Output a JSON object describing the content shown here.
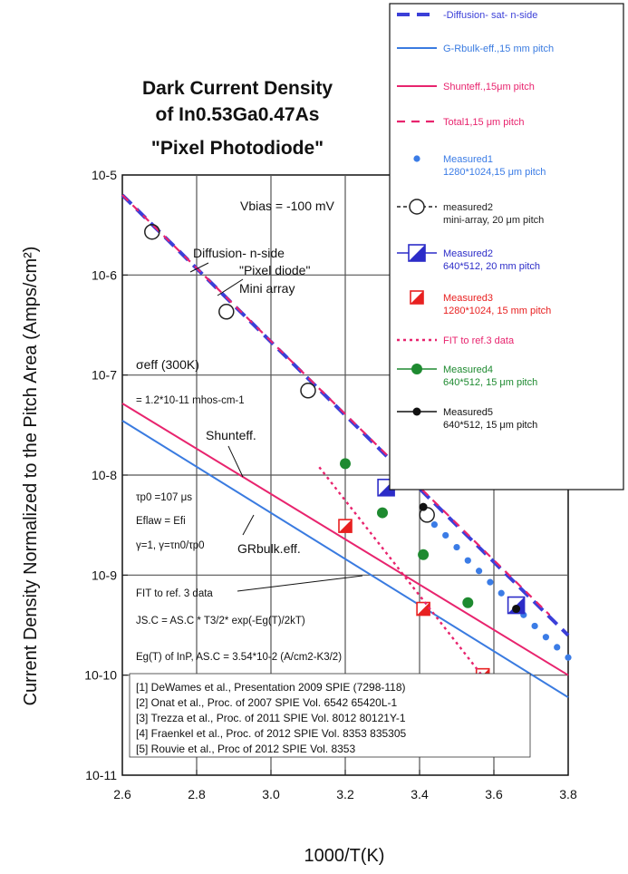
{
  "chart_data": {
    "type": "line",
    "title_lines": [
      "Dark Current Density",
      "of In0.53Ga0.47As",
      "\"Pixel Photodiode\""
    ],
    "xlabel": "1000/T(K)",
    "ylabel": "Current Density Normalized to the Pitch Area (Amps/cm²)",
    "xlim": [
      2.6,
      3.8
    ],
    "ylim_log10": [
      -11,
      -5
    ],
    "y_scale": "log",
    "grid": true,
    "legend_position": "top-right",
    "x_ticks": [
      "2.6",
      "2.8",
      "3.0",
      "3.2",
      "3.4",
      "3.6",
      "3.8"
    ],
    "y_ticks": [
      "10-5",
      "10-6",
      "10-7",
      "10-8",
      "10-9",
      "10-10",
      "10-11"
    ],
    "annotations": {
      "vbias": "Vbias = -100 mV",
      "diffusion": "Diffusion- n-side",
      "pixel_diode": "\"Pixel diode\"",
      "mini_array": "Mini array",
      "sigma": "σeff (300K)",
      "sigma_val": "= 1.2*10-11 mhos-cm-1",
      "shunt": "Shunteff.",
      "tau": "τp0 =107 μs",
      "eflaw": "Eflaw = Efi",
      "gamma": "γ=1, γ=τn0/τp0",
      "gr": "GRbulk.eff.",
      "fit_title": "FIT to ref. 3 data",
      "fit_eq": "JS.C = AS.C * T3/2* exp(-Eg(T)/2kT)",
      "fit_eg": "Eg(T) of InP, AS.C = 3.54*10-2 (A/cm2-K3/2)"
    },
    "references": [
      "[1] DeWames et al., Presentation 2009 SPIE (7298-118)",
      "[2] Onat et al., Proc. of 2007 SPIE Vol. 6542 65420L-1",
      "[3] Trezza et al., Proc. of 2011 SPIE Vol. 8012 80121Y-1",
      "[4] Fraenkel et al., Proc. of  2012 SPIE Vol. 8353 835305",
      "[5] Rouvie et al.,  Proc of 2012 SPIE Vol. 8353"
    ],
    "series": [
      {
        "name": "-Diffusion- sat- n-side",
        "kind": "line",
        "style": "dash-thick",
        "color": "#3b3fd8",
        "x": [
          2.6,
          3.8
        ],
        "y": [
          6.3e-06,
          2.5e-10
        ]
      },
      {
        "name": "G-Rbulk-eff.,15 mm pitch",
        "kind": "line",
        "style": "solid",
        "color": "#3a7be0",
        "x": [
          2.6,
          3.8
        ],
        "y": [
          3.5e-08,
          6e-11
        ]
      },
      {
        "name": "Shunteff.,15μm pitch",
        "kind": "line",
        "style": "solid",
        "color": "#e8246e",
        "x": [
          2.6,
          3.8
        ],
        "y": [
          5.2e-08,
          1e-10
        ]
      },
      {
        "name": "Total1,15 μm pitch",
        "kind": "line",
        "style": "dash-red",
        "color": "#e8246e",
        "x": [
          2.6,
          3.75
        ],
        "y": [
          6.3e-06,
          4e-10
        ]
      },
      {
        "name": "Measured1 1280*1024,15 μm pitch",
        "kind": "marker",
        "marker": "dot",
        "color": "#3b7ce6",
        "x": [
          3.44,
          3.47,
          3.5,
          3.53,
          3.56,
          3.59,
          3.62,
          3.65,
          3.68,
          3.71,
          3.74,
          3.77,
          3.8
        ],
        "y": [
          3.2e-09,
          2.5e-09,
          1.9e-09,
          1.4e-09,
          1.1e-09,
          8.5e-10,
          6.6e-10,
          5.2e-10,
          4e-10,
          3.1e-10,
          2.4e-10,
          1.9e-10,
          1.5e-10
        ]
      },
      {
        "name": "measured2 mini-array, 20 μm pitch",
        "kind": "marker",
        "marker": "open-circle",
        "color": "#222222",
        "x": [
          2.68,
          2.88,
          3.1,
          3.42
        ],
        "y": [
          2.7e-06,
          4.3e-07,
          7e-08,
          4e-09
        ]
      },
      {
        "name": "Measured2 640*512, 20 mm pitch",
        "kind": "marker",
        "marker": "half-square-blue",
        "color": "#2c2cc8",
        "x": [
          3.31,
          3.66
        ],
        "y": [
          7.5e-09,
          5e-10
        ]
      },
      {
        "name": "Measured3 1280*1024, 15 mm pitch",
        "kind": "marker",
        "marker": "half-square-red",
        "color": "#e82020",
        "x": [
          3.2,
          3.41,
          3.57
        ],
        "y": [
          3.1e-09,
          4.6e-10,
          1e-10
        ]
      },
      {
        "name": "FIT to ref.3 data",
        "kind": "line",
        "style": "dot-pink",
        "color": "#e8246e",
        "x": [
          3.13,
          3.6
        ],
        "y": [
          1.2e-08,
          7e-11
        ]
      },
      {
        "name": "Measured4 640*512, 15 μm pitch",
        "kind": "marker",
        "marker": "green-dot",
        "color": "#1e8a30",
        "x": [
          3.2,
          3.3,
          3.41,
          3.53
        ],
        "y": [
          1.3e-08,
          4.2e-09,
          1.6e-09,
          5.3e-10
        ]
      },
      {
        "name": "Measured5 640*512, 15 μm pitch",
        "kind": "marker",
        "marker": "black-dot",
        "color": "#111111",
        "x": [
          3.41,
          3.66
        ],
        "y": [
          4.8e-09,
          4.6e-10
        ]
      }
    ]
  }
}
